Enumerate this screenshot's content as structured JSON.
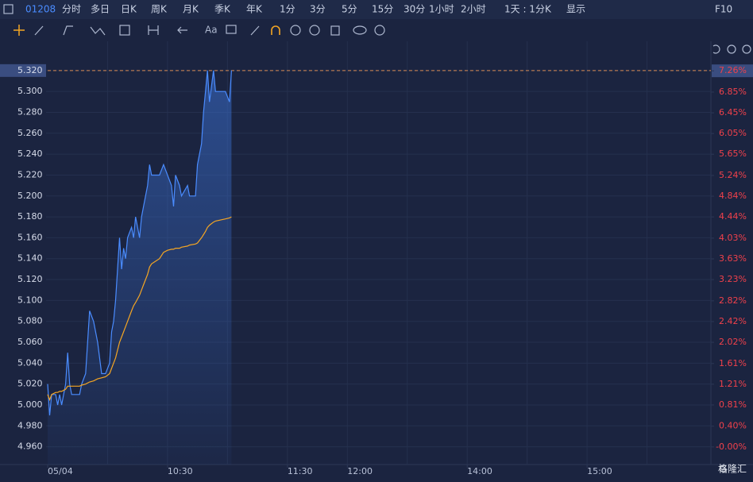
{
  "toolbar": {
    "code": "01208",
    "tabs": [
      "分时",
      "多日",
      "日K",
      "周K",
      "月K",
      "季K",
      "年K",
      "1分",
      "3分",
      "5分",
      "15分",
      "30分",
      "1小时",
      "2小时",
      "1天 : 1分K",
      "显示",
      "F10"
    ],
    "text_tool": "Aa"
  },
  "watermark": "格隆汇",
  "chart_data": {
    "type": "line",
    "x": [
      "09:30",
      "09:31",
      "09:32",
      "09:34",
      "09:35",
      "09:36",
      "09:37",
      "09:39",
      "09:40",
      "09:41",
      "09:42",
      "09:46",
      "09:47",
      "09:49",
      "09:51",
      "09:53",
      "09:55",
      "09:57",
      "09:59",
      "10:01",
      "10:02",
      "10:03",
      "10:04",
      "10:06",
      "10:07",
      "10:08",
      "10:09",
      "10:10",
      "10:12",
      "10:13",
      "10:14",
      "10:16",
      "10:17",
      "10:18",
      "10:20",
      "10:21",
      "10:22",
      "10:26",
      "10:28",
      "10:30",
      "10:32",
      "10:33",
      "10:34",
      "10:36",
      "10:37",
      "10:40",
      "10:41",
      "10:44",
      "10:45",
      "10:47",
      "10:48",
      "10:49",
      "10:50",
      "10:51",
      "10:53",
      "10:54",
      "10:59",
      "11:01",
      "11:02"
    ],
    "series": [
      {
        "name": "price",
        "color": "#4a8cff",
        "values": [
          5.02,
          4.99,
          5.01,
          5.01,
          5.0,
          5.01,
          5.0,
          5.02,
          5.05,
          5.02,
          5.01,
          5.01,
          5.02,
          5.03,
          5.09,
          5.08,
          5.06,
          5.03,
          5.03,
          5.04,
          5.07,
          5.08,
          5.1,
          5.16,
          5.13,
          5.15,
          5.14,
          5.16,
          5.17,
          5.16,
          5.18,
          5.16,
          5.18,
          5.19,
          5.21,
          5.23,
          5.22,
          5.22,
          5.23,
          5.22,
          5.21,
          5.19,
          5.22,
          5.21,
          5.2,
          5.21,
          5.2,
          5.2,
          5.23,
          5.25,
          5.28,
          5.3,
          5.32,
          5.29,
          5.32,
          5.3,
          5.3,
          5.29,
          5.32
        ]
      },
      {
        "name": "average",
        "color": "#f5a623",
        "values": [
          5.01,
          5.005,
          5.01,
          5.012,
          5.012,
          5.013,
          5.013,
          5.015,
          5.018,
          5.018,
          5.018,
          5.018,
          5.019,
          5.02,
          5.022,
          5.023,
          5.025,
          5.026,
          5.027,
          5.03,
          5.035,
          5.04,
          5.045,
          5.06,
          5.065,
          5.07,
          5.075,
          5.08,
          5.09,
          5.095,
          5.098,
          5.105,
          5.11,
          5.115,
          5.125,
          5.132,
          5.135,
          5.14,
          5.146,
          5.148,
          5.149,
          5.149,
          5.15,
          5.15,
          5.151,
          5.152,
          5.153,
          5.154,
          5.155,
          5.16,
          5.163,
          5.166,
          5.17,
          5.172,
          5.175,
          5.176,
          5.178,
          5.179,
          5.18
        ]
      }
    ],
    "xlim": [
      "09:30",
      "16:00"
    ],
    "xticks": [
      "05/04",
      "10:30",
      "11:30",
      "12:00",
      "14:00",
      "15:00"
    ],
    "ylim": [
      4.943,
      5.348
    ],
    "yticks": [
      {
        "value": 4.96,
        "label": "4.960"
      },
      {
        "value": 4.98,
        "label": "4.980"
      },
      {
        "value": 5.0,
        "label": "5.000"
      },
      {
        "value": 5.02,
        "label": "5.020"
      },
      {
        "value": 5.04,
        "label": "5.040"
      },
      {
        "value": 5.06,
        "label": "5.060"
      },
      {
        "value": 5.08,
        "label": "5.080"
      },
      {
        "value": 5.1,
        "label": "5.100"
      },
      {
        "value": 5.12,
        "label": "5.120"
      },
      {
        "value": 5.14,
        "label": "5.140"
      },
      {
        "value": 5.16,
        "label": "5.160"
      },
      {
        "value": 5.18,
        "label": "5.180"
      },
      {
        "value": 5.2,
        "label": "5.200"
      },
      {
        "value": 5.22,
        "label": "5.220"
      },
      {
        "value": 5.24,
        "label": "5.240"
      },
      {
        "value": 5.26,
        "label": "5.260"
      },
      {
        "value": 5.28,
        "label": "5.280"
      },
      {
        "value": 5.3,
        "label": "5.300"
      },
      {
        "value": 5.32,
        "label": "5.320"
      }
    ],
    "y2lim": [
      -0.34,
      7.83
    ],
    "y2ticks": [
      {
        "value": 0,
        "label": "-0.00%"
      },
      {
        "value": 0.4,
        "label": "0.40%"
      },
      {
        "value": 0.81,
        "label": "0.81%"
      },
      {
        "value": 1.21,
        "label": "1.21%"
      },
      {
        "value": 1.61,
        "label": "1.61%"
      },
      {
        "value": 2.02,
        "label": "2.02%"
      },
      {
        "value": 2.42,
        "label": "2.42%"
      },
      {
        "value": 2.82,
        "label": "2.82%"
      },
      {
        "value": 3.23,
        "label": "3.23%"
      },
      {
        "value": 3.63,
        "label": "3.63%"
      },
      {
        "value": 4.03,
        "label": "4.03%"
      },
      {
        "value": 4.44,
        "label": "4.44%"
      },
      {
        "value": 4.84,
        "label": "4.84%"
      },
      {
        "value": 5.24,
        "label": "5.24%"
      },
      {
        "value": 5.65,
        "label": "5.65%"
      },
      {
        "value": 6.05,
        "label": "6.05%"
      },
      {
        "value": 6.45,
        "label": "6.45%"
      },
      {
        "value": 6.85,
        "label": "6.85%"
      },
      {
        "value": 7.26,
        "label": "7.26%"
      }
    ],
    "grid": true
  }
}
